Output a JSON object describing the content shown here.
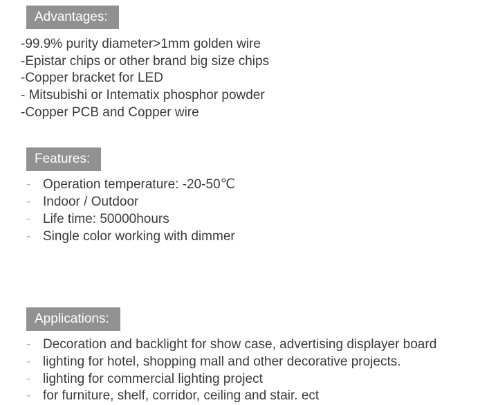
{
  "colors": {
    "header_bg": "#919191",
    "header_text": "#ffffff",
    "body_text": "#3a3a3a",
    "dash_color": "#b8b8b8",
    "background": "#ffffff"
  },
  "typography": {
    "header_fontsize": 19,
    "body_fontsize": 19,
    "line_height": 1.3
  },
  "sections": {
    "advantages": {
      "title": "Advantages:",
      "items": [
        "-99.9% purity diameter>1mm golden wire",
        "-Epistar chips or other brand big size chips",
        "-Copper bracket for LED",
        "- Mitsubishi or Intematix phosphor powder",
        "-Copper PCB and Copper wire"
      ]
    },
    "features": {
      "title": "Features:",
      "dash": "-",
      "items": [
        "Operation temperature: -20-50℃",
        "Indoor / Outdoor",
        "Life time: 50000hours",
        "Single color working with dimmer"
      ]
    },
    "applications": {
      "title": "Applications:",
      "dash": "-",
      "items": [
        "Decoration and backlight  for show case, advertising displayer board",
        "lighting for hotel, shopping mall and other decorative projects.",
        "lighting for commercial lighting project",
        "for furniture, shelf, corridor, ceiling and stair. ect"
      ]
    }
  }
}
